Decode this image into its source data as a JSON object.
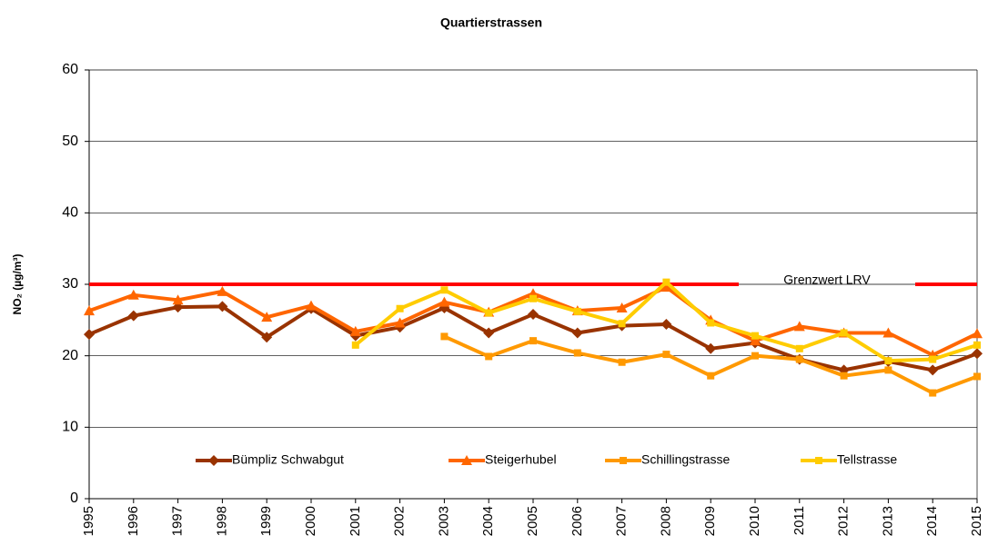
{
  "chart_data": {
    "type": "line",
    "title": "Quartierstrassen",
    "y_label": "NO₂ (µg/m³)",
    "categories": [
      "1995",
      "1996",
      "1997",
      "1998",
      "1999",
      "2000",
      "2001",
      "2002",
      "2003",
      "2004",
      "2005",
      "2006",
      "2007",
      "2008",
      "2009",
      "2010",
      "2011",
      "2012",
      "2013",
      "2014",
      "2015"
    ],
    "series": [
      {
        "name": "Bümpliz Schwabgut",
        "color": "#993300",
        "marker": "diamond",
        "values": [
          23,
          25.6,
          26.8,
          26.9,
          22.6,
          26.6,
          22.8,
          24.0,
          26.7,
          23.2,
          25.8,
          23.2,
          24.2,
          24.4,
          21.0,
          21.8,
          19.5,
          18.0,
          19.2,
          18.0,
          20.3
        ]
      },
      {
        "name": "Steigerhubel",
        "color": "#ff6600",
        "marker": "triangle",
        "values": [
          26.3,
          28.5,
          27.8,
          29.0,
          25.4,
          27.0,
          23.4,
          24.6,
          27.5,
          26.1,
          28.7,
          26.3,
          26.7,
          29.6,
          25.0,
          22.1,
          24.1,
          23.2,
          23.2,
          20.1,
          23.1
        ]
      },
      {
        "name": "Schillingstrasse",
        "color": "#ff9900",
        "marker": "square",
        "values": [
          null,
          null,
          null,
          null,
          null,
          null,
          null,
          null,
          22.7,
          19.9,
          22.1,
          20.4,
          19.1,
          20.2,
          17.2,
          20.0,
          19.5,
          17.2,
          18.0,
          14.8,
          17.1
        ]
      },
      {
        "name": "Tellstrasse",
        "color": "#ffcc00",
        "marker": "square",
        "values": [
          null,
          null,
          null,
          null,
          null,
          null,
          21.5,
          26.6,
          29.2,
          26.0,
          28.0,
          26.2,
          24.5,
          30.3,
          24.6,
          22.8,
          21.0,
          23.2,
          19.3,
          19.5,
          21.5
        ]
      }
    ],
    "limit": {
      "value": 30,
      "label": "Grenzwert LRV",
      "color": "#ff0000"
    },
    "ylim": [
      0,
      60
    ],
    "yticks": [
      0,
      10,
      20,
      30,
      40,
      50,
      60
    ],
    "grid": true
  }
}
